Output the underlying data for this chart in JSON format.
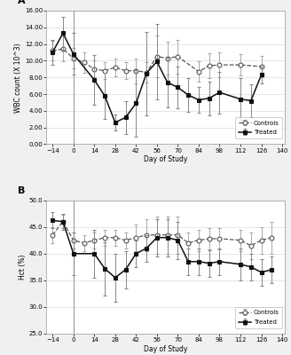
{
  "panel_A": {
    "title": "A",
    "ylabel": "WBC count (X 10^3)",
    "xlabel": "Day of Study",
    "ylim": [
      0,
      16.0
    ],
    "yticks": [
      0.0,
      2.0,
      4.0,
      6.0,
      8.0,
      10.0,
      12.0,
      14.0,
      16.0
    ],
    "xlim": [
      -18,
      142
    ],
    "xticks": [
      -14,
      0,
      14,
      28,
      42,
      56,
      70,
      84,
      98,
      112,
      126,
      140
    ],
    "vline_x": 0,
    "controls": {
      "x": [
        -14,
        -7,
        0,
        7,
        14,
        21,
        28,
        35,
        42,
        49,
        56,
        63,
        70,
        84,
        91,
        98,
        112,
        126
      ],
      "y": [
        11.2,
        11.4,
        10.3,
        9.8,
        9.0,
        8.8,
        9.2,
        8.8,
        8.8,
        8.6,
        10.5,
        10.3,
        10.5,
        8.7,
        9.4,
        9.5,
        9.5,
        9.3
      ],
      "yerr_lo": [
        1.2,
        1.5,
        1.2,
        1.2,
        1.0,
        1.0,
        1.1,
        1.0,
        1.5,
        1.2,
        2.5,
        2.0,
        2.0,
        1.2,
        1.5,
        1.5,
        1.3,
        1.3
      ],
      "yerr_hi": [
        1.2,
        1.5,
        1.2,
        1.2,
        1.0,
        1.0,
        1.1,
        1.0,
        1.5,
        1.2,
        2.5,
        2.0,
        2.0,
        1.2,
        1.5,
        1.5,
        1.3,
        1.3
      ]
    },
    "treated": {
      "x": [
        -14,
        -7,
        0,
        14,
        21,
        28,
        35,
        42,
        49,
        56,
        63,
        70,
        77,
        84,
        91,
        98,
        112,
        119,
        126
      ],
      "y": [
        11.0,
        13.3,
        10.8,
        7.7,
        5.8,
        2.6,
        3.2,
        4.9,
        8.5,
        9.9,
        7.4,
        6.8,
        5.9,
        5.3,
        5.5,
        6.2,
        5.4,
        5.2,
        8.3
      ],
      "yerr_lo": [
        1.5,
        2.0,
        2.5,
        3.0,
        2.8,
        1.0,
        2.0,
        4.0,
        5.0,
        4.5,
        3.0,
        2.5,
        2.0,
        1.5,
        2.0,
        2.5,
        2.5,
        2.0,
        1.0
      ],
      "yerr_hi": [
        1.5,
        2.0,
        2.5,
        3.0,
        2.8,
        1.0,
        2.0,
        4.0,
        5.0,
        4.5,
        3.0,
        2.5,
        2.0,
        1.5,
        2.0,
        2.5,
        2.5,
        2.0,
        1.0
      ]
    }
  },
  "panel_B": {
    "title": "B",
    "ylabel": "Hct (%)",
    "xlabel": "Day of Study",
    "ylim": [
      25.0,
      50.0
    ],
    "yticks": [
      25.0,
      30.0,
      35.0,
      40.0,
      45.0,
      50.0
    ],
    "xlim": [
      -18,
      142
    ],
    "xticks": [
      -14,
      0,
      14,
      28,
      42,
      56,
      70,
      84,
      98,
      112,
      126,
      140
    ],
    "vline_x": 0,
    "controls": {
      "x": [
        -14,
        -7,
        0,
        7,
        14,
        21,
        28,
        35,
        42,
        49,
        56,
        63,
        70,
        77,
        84,
        91,
        98,
        112,
        119,
        126,
        133
      ],
      "y": [
        43.5,
        46.0,
        42.5,
        42.0,
        42.5,
        43.0,
        43.0,
        42.5,
        43.0,
        43.5,
        43.5,
        43.5,
        43.5,
        42.0,
        42.5,
        42.8,
        42.8,
        42.5,
        41.5,
        42.5,
        43.0
      ],
      "yerr_lo": [
        1.5,
        1.2,
        1.5,
        1.5,
        1.5,
        1.5,
        1.5,
        1.5,
        2.5,
        3.0,
        3.5,
        3.5,
        3.5,
        2.0,
        2.0,
        2.0,
        2.0,
        2.0,
        2.5,
        2.5,
        3.0
      ],
      "yerr_hi": [
        1.5,
        1.2,
        1.5,
        1.5,
        1.5,
        1.5,
        1.5,
        1.5,
        2.5,
        3.0,
        3.5,
        3.5,
        3.5,
        2.0,
        2.0,
        2.0,
        2.0,
        2.0,
        2.5,
        2.5,
        3.0
      ]
    },
    "treated": {
      "x": [
        -14,
        -7,
        0,
        14,
        21,
        28,
        35,
        42,
        49,
        56,
        63,
        70,
        77,
        84,
        91,
        98,
        112,
        119,
        126,
        133
      ],
      "y": [
        46.2,
        46.0,
        40.0,
        40.0,
        37.2,
        35.5,
        37.0,
        40.0,
        41.0,
        43.0,
        43.0,
        42.5,
        38.5,
        38.5,
        38.2,
        38.5,
        38.0,
        37.5,
        36.5,
        37.0
      ],
      "yerr_lo": [
        1.5,
        1.5,
        4.0,
        4.5,
        5.0,
        4.5,
        3.5,
        2.5,
        2.5,
        3.5,
        3.5,
        3.5,
        2.5,
        2.5,
        2.5,
        2.5,
        3.0,
        2.5,
        2.5,
        2.5
      ],
      "yerr_hi": [
        1.5,
        1.5,
        4.0,
        4.5,
        5.0,
        4.5,
        3.5,
        2.5,
        2.5,
        3.5,
        3.5,
        3.5,
        2.5,
        2.5,
        2.5,
        2.5,
        3.0,
        2.5,
        2.5,
        2.5
      ]
    }
  },
  "bg_color": "#f0f0f0",
  "plot_bg": "#ffffff",
  "line_color_controls": "#555555",
  "line_color_treated": "#111111",
  "error_color_controls": "#aaaaaa",
  "error_color_treated": "#888888"
}
